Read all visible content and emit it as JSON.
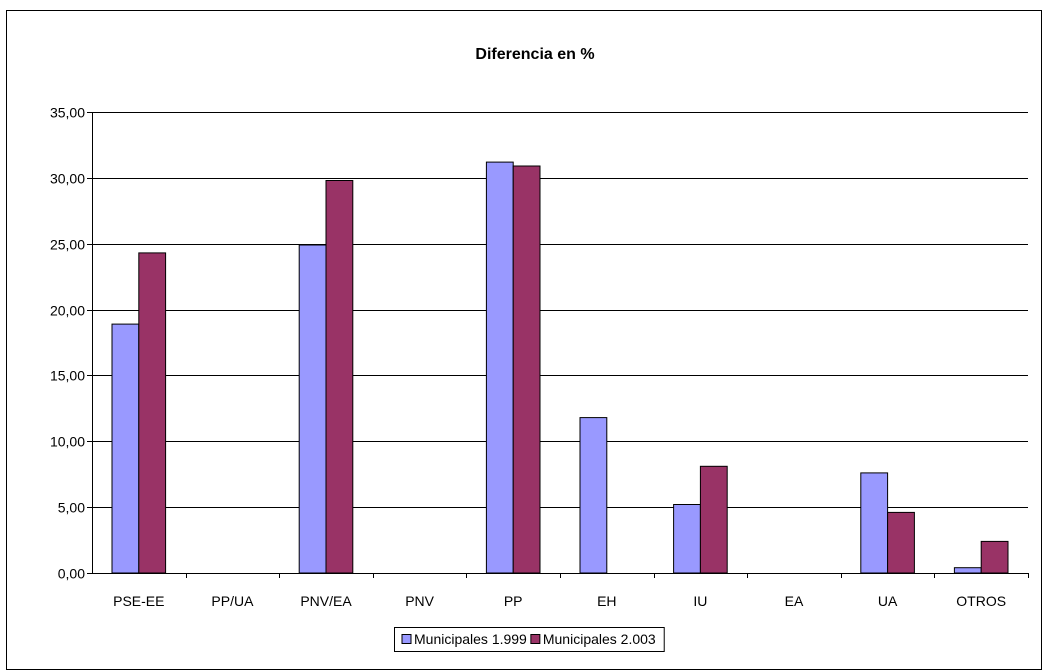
{
  "chart_data": {
    "type": "bar",
    "title": "Diferencia en %",
    "xlabel": "",
    "ylabel": "",
    "categories": [
      "PSE-EE",
      "PP/UA",
      "PNV/EA",
      "PNV",
      "PP",
      "EH",
      "IU",
      "EA",
      "UA",
      "OTROS"
    ],
    "series": [
      {
        "name": "Municipales 1.999",
        "color": "#9999FF",
        "values": [
          18.9,
          null,
          24.9,
          null,
          31.2,
          11.8,
          5.2,
          null,
          7.6,
          0.4
        ]
      },
      {
        "name": "Municipales 2.003",
        "color": "#993366",
        "values": [
          24.3,
          null,
          29.8,
          null,
          30.9,
          null,
          8.1,
          null,
          4.6,
          2.4
        ]
      }
    ],
    "ylim": [
      0,
      35
    ],
    "yticks": [
      "0,00",
      "5,00",
      "10,00",
      "15,00",
      "20,00",
      "25,00",
      "30,00",
      "35,00"
    ],
    "ytick_step": 5,
    "grid": true,
    "legend_position": "bottom"
  }
}
